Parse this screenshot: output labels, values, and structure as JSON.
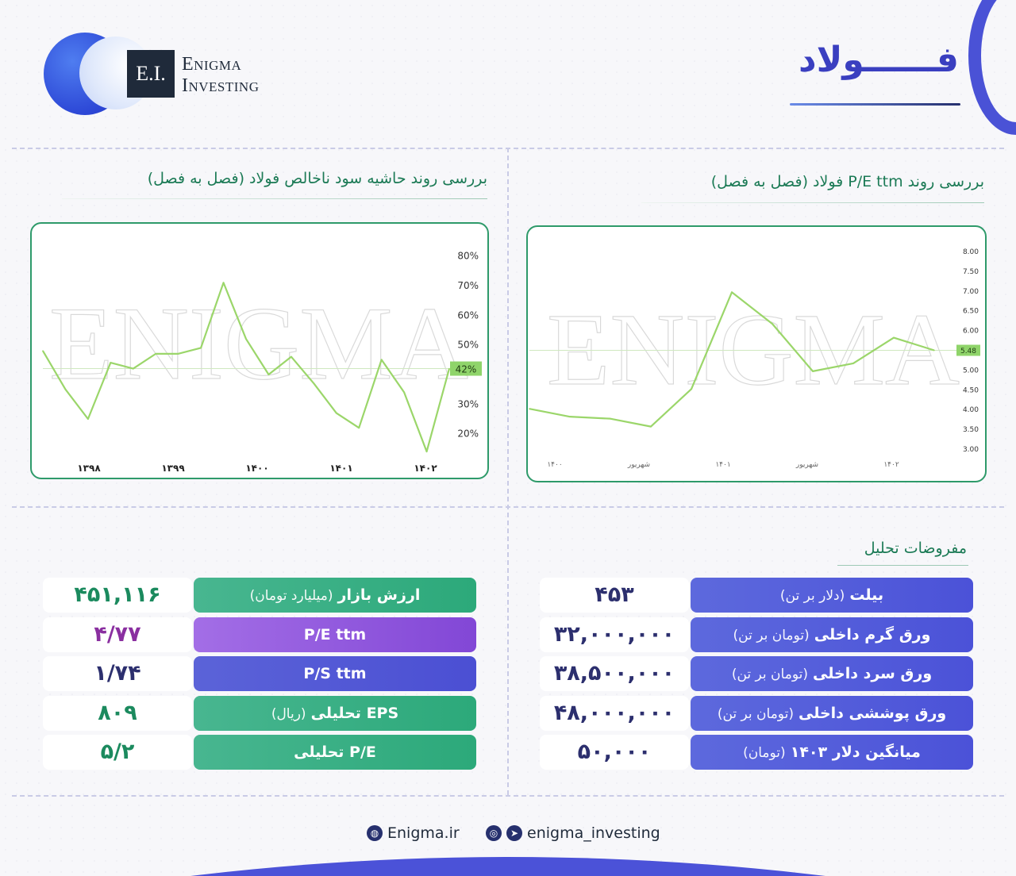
{
  "brand": {
    "logo_mark": "E.I.",
    "name_line1": "Enigma",
    "name_line2": "Investing"
  },
  "page_title": "فــــــولاد",
  "colors": {
    "accent_blue": "#4b52d8",
    "accent_green": "#2ca97a",
    "accent_purple": "#8247d6",
    "chart_line": "#9bd66a",
    "chart_border": "#2e9a6a",
    "title_green": "#1b7a55"
  },
  "watermark": "ENIGMA",
  "charts": {
    "left": {
      "title": "بررسی روند حاشیه سود ناخالص فولاد (فصل به فصل)",
      "current_label": "42%"
    },
    "right": {
      "title": "بررسی روند P/E ttm فولاد (فصل به فصل)",
      "current_label": "5.48"
    }
  },
  "chart_data": [
    {
      "type": "line",
      "title": "بررسی روند حاشیه سود ناخالص فولاد (فصل به فصل)",
      "xlabel": "",
      "ylabel": "",
      "x_tick_labels": [
        "۱۳۹۸",
        "۱۳۹۹",
        "۱۴۰۰",
        "۱۴۰۱",
        "۱۴۰۲"
      ],
      "y_tick_labels": [
        "80%",
        "70%",
        "60%",
        "50%",
        "42%",
        "30%",
        "20%"
      ],
      "ylim": [
        10,
        85
      ],
      "grid": false,
      "current_value": 42,
      "values": [
        48,
        35,
        25,
        44,
        42,
        47,
        47,
        49,
        71,
        52,
        40,
        46,
        37,
        27,
        22,
        45,
        34,
        14,
        42
      ]
    },
    {
      "type": "line",
      "title": "بررسی روند P/E ttm فولاد (فصل به فصل)",
      "xlabel": "",
      "ylabel": "",
      "x_tick_labels": [
        "۱۴۰۰",
        "شهریور",
        "۱۴۰۱",
        "شهریور",
        "۱۴۰۲"
      ],
      "y_tick_labels": [
        "8.00",
        "7.50",
        "7.00",
        "6.50",
        "6.00",
        "5.48",
        "5.00",
        "4.50",
        "4.00",
        "3.50",
        "3.00"
      ],
      "ylim": [
        3.0,
        8.0
      ],
      "grid": false,
      "current_value": 5.48,
      "values": [
        4.0,
        3.8,
        3.75,
        3.55,
        4.5,
        6.95,
        6.15,
        4.95,
        5.15,
        5.8,
        5.48
      ]
    }
  ],
  "assumptions": {
    "title": "مفروضات تحلیل",
    "rows": [
      {
        "label_bold": "بیلت",
        "label_sub": "(دلار بر تن)",
        "value": "۴۵۳"
      },
      {
        "label_bold": "ورق گرم داخلی",
        "label_sub": "(تومان بر تن)",
        "value": "۳۲,۰۰۰,۰۰۰"
      },
      {
        "label_bold": "ورق سرد داخلی",
        "label_sub": "(تومان بر تن)",
        "value": "۳۸,۵۰۰,۰۰۰"
      },
      {
        "label_bold": "ورق پوششی داخلی",
        "label_sub": "(تومان بر تن)",
        "value": "۴۸,۰۰۰,۰۰۰"
      },
      {
        "label_bold": "میانگین دلار ۱۴۰۳",
        "label_sub": "(تومان)",
        "value": "۵۰,۰۰۰"
      }
    ]
  },
  "valuation": {
    "rows": [
      {
        "label_bold": "ارزش بازار",
        "label_sub": "(میلیارد تومان)",
        "value": "۴۵۱,۱۱۶",
        "color": "#1b8a5e"
      },
      {
        "label_bold": "P/E ttm",
        "label_sub": "",
        "value": "۴/۷۷",
        "color": "#8a2fa0"
      },
      {
        "label_bold": "P/S ttm",
        "label_sub": "",
        "value": "۱/۷۴",
        "color": "#2c2f6e"
      },
      {
        "label_bold": "EPS تحلیلی",
        "label_sub": "(ریال)",
        "value": "۸۰۹",
        "color": "#1b8a5e"
      },
      {
        "label_bold": "P/E تحلیلی",
        "label_sub": "",
        "value": "۵/۲",
        "color": "#1b8a5e"
      }
    ]
  },
  "footer": {
    "website": "Enigma.ir",
    "social": "enigma_investing"
  }
}
